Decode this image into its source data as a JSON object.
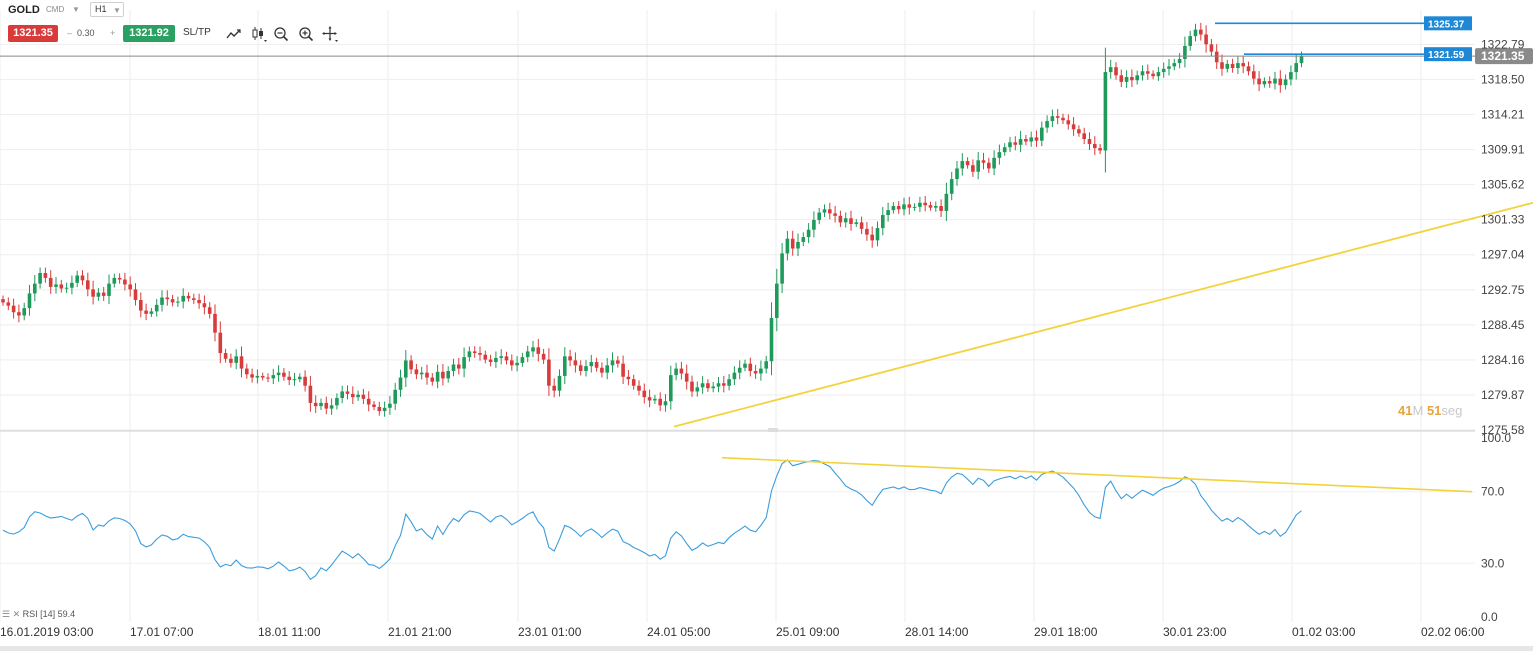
{
  "toolbar": {
    "symbol": "GOLD",
    "symbol_tag": "CMD",
    "timeframe": "H1",
    "bid": "1321.35",
    "spread": "0.30",
    "ask": "1321.92",
    "sltp_label": "SL/TP",
    "spread_minus": "–",
    "spread_plus": "+",
    "icons": [
      "line-chart-icon",
      "candlestick-icon",
      "zoom-out-icon",
      "zoom-in-icon",
      "crosshair-icon"
    ]
  },
  "countdown": {
    "minutes": "41",
    "minutes_unit": "M",
    "seconds": "51",
    "seconds_unit": "seg"
  },
  "rsi": {
    "label": "RSI [14] 59.4"
  },
  "colors": {
    "bull": "#1e9a5a",
    "bear": "#d93a3a",
    "trend": "#f2d33c",
    "level": "#1e88d6",
    "rsi": "#3b9ddd",
    "countdown": "#e8a33d"
  },
  "chart_data": [
    {
      "type": "candlestick",
      "symbol": "GOLD",
      "timeframe": "H1",
      "y_ticks": [
        1322.79,
        1318.5,
        1314.21,
        1309.91,
        1305.62,
        1301.33,
        1297.04,
        1292.75,
        1288.45,
        1284.16,
        1279.87,
        1275.58
      ],
      "ylim": [
        1275.58,
        1327.0
      ],
      "x_tick_labels": [
        "16.01.2019 03:00",
        "17.01 07:00",
        "18.01 11:00",
        "21.01 21:00",
        "23.01 01:00",
        "24.01 05:00",
        "25.01 09:00",
        "28.01 14:00",
        "29.01 18:00",
        "30.01 23:00",
        "01.02 03:00",
        "02.02 06:00"
      ],
      "current_price": {
        "value": 1321.35,
        "label": "1321.35"
      },
      "price_levels": [
        {
          "value": 1325.37,
          "label": "1325.37"
        },
        {
          "value": 1321.59,
          "label": "1321.59"
        }
      ],
      "trendline_points": [
        [
          0.0,
          1276.0
        ],
        [
          55.0,
          1322.0
        ]
      ],
      "close_series": [
        1291.2,
        1290.8,
        1290.0,
        1289.6,
        1290.5,
        1292.3,
        1293.5,
        1294.8,
        1294.2,
        1293.1,
        1293.4,
        1292.9,
        1293.0,
        1293.6,
        1294.5,
        1293.9,
        1292.8,
        1291.9,
        1292.4,
        1292.0,
        1293.5,
        1294.2,
        1294.0,
        1293.4,
        1292.8,
        1291.5,
        1290.2,
        1289.8,
        1290.1,
        1290.9,
        1291.8,
        1291.6,
        1291.2,
        1291.3,
        1292.0,
        1291.7,
        1291.5,
        1291.1,
        1290.6,
        1289.8,
        1287.5,
        1285.0,
        1284.3,
        1283.8,
        1284.6,
        1283.1,
        1282.4,
        1282.0,
        1282.2,
        1282.0,
        1281.9,
        1282.3,
        1282.6,
        1282.1,
        1281.7,
        1281.8,
        1282.1,
        1281.0,
        1278.9,
        1278.5,
        1278.9,
        1278.2,
        1278.6,
        1279.5,
        1280.3,
        1280.0,
        1279.6,
        1279.9,
        1279.4,
        1278.7,
        1278.4,
        1277.9,
        1278.3,
        1278.8,
        1280.5,
        1282.0,
        1284.1,
        1283.0,
        1282.4,
        1282.6,
        1282.0,
        1281.5,
        1282.7,
        1281.9,
        1282.8,
        1283.6,
        1283.1,
        1284.5,
        1285.2,
        1285.0,
        1284.8,
        1284.2,
        1283.9,
        1284.4,
        1284.6,
        1284.1,
        1283.5,
        1283.8,
        1284.5,
        1285.2,
        1285.7,
        1284.9,
        1284.2,
        1281.0,
        1280.4,
        1282.2,
        1284.6,
        1284.1,
        1283.5,
        1282.8,
        1283.4,
        1283.9,
        1283.2,
        1282.6,
        1283.5,
        1284.1,
        1283.7,
        1282.1,
        1281.8,
        1281.0,
        1280.4,
        1279.6,
        1279.2,
        1279.4,
        1278.6,
        1279.1,
        1282.3,
        1283.1,
        1282.5,
        1281.5,
        1280.3,
        1280.8,
        1281.3,
        1280.7,
        1280.9,
        1281.3,
        1281.0,
        1281.8,
        1282.6,
        1283.2,
        1283.7,
        1282.8,
        1282.5,
        1283.1,
        1284.0,
        1289.3,
        1293.5,
        1297.2,
        1299.0,
        1297.8,
        1298.6,
        1299.2,
        1300.1,
        1301.3,
        1302.2,
        1302.6,
        1302.1,
        1301.8,
        1301.0,
        1301.5,
        1300.8,
        1301.0,
        1300.2,
        1299.5,
        1298.8,
        1300.3,
        1301.9,
        1302.5,
        1303.0,
        1302.6,
        1303.2,
        1302.8,
        1302.9,
        1303.4,
        1303.1,
        1302.8,
        1303.0,
        1302.4,
        1304.5,
        1306.3,
        1307.6,
        1308.5,
        1308.0,
        1307.2,
        1308.6,
        1308.3,
        1307.6,
        1308.9,
        1309.6,
        1310.2,
        1310.8,
        1310.5,
        1311.2,
        1310.9,
        1311.4,
        1311.0,
        1312.6,
        1313.4,
        1314.0,
        1313.8,
        1313.5,
        1313.0,
        1312.4,
        1311.9,
        1311.2,
        1310.6,
        1310.1,
        1309.8,
        1319.4,
        1320.0,
        1319.0,
        1318.2,
        1318.8,
        1318.4,
        1319.0,
        1319.5,
        1319.2,
        1318.9,
        1319.4,
        1319.8,
        1320.1,
        1320.5,
        1321.0,
        1322.6,
        1323.8,
        1324.6,
        1324.0,
        1322.8,
        1321.9,
        1320.6,
        1319.8,
        1320.4,
        1319.9,
        1320.5,
        1320.1,
        1319.5,
        1318.6,
        1317.9,
        1318.3,
        1318.0,
        1318.6,
        1317.8,
        1318.5,
        1319.4,
        1320.5,
        1321.35
      ]
    },
    {
      "type": "line",
      "indicator": "RSI [14] 59.4",
      "y_ticks": [
        100.0,
        70.0,
        30.0,
        0.0
      ],
      "y_tick_labels": [
        "100.0",
        "70.0",
        "30.0",
        "0.0"
      ],
      "ylim": [
        0,
        100
      ],
      "trendline_points": [
        [
          0.0,
          89.0
        ],
        [
          55.0,
          70.0
        ]
      ],
      "values": [
        48.5,
        47.0,
        46.3,
        47.6,
        50.0,
        56.0,
        58.8,
        58.1,
        56.5,
        55.3,
        55.7,
        56.2,
        55.0,
        54.0,
        56.4,
        57.9,
        55.1,
        48.6,
        51.4,
        50.8,
        53.7,
        55.4,
        55.0,
        53.9,
        52.0,
        48.1,
        41.0,
        39.1,
        40.3,
        43.5,
        45.8,
        45.1,
        43.0,
        43.8,
        46.2,
        44.9,
        44.5,
        44.1,
        42.0,
        38.9,
        32.0,
        28.0,
        29.4,
        28.6,
        31.8,
        28.7,
        27.5,
        27.3,
        28.0,
        27.8,
        26.9,
        28.4,
        30.7,
        28.5,
        25.8,
        26.4,
        27.9,
        25.4,
        21.0,
        23.1,
        27.5,
        25.8,
        29.1,
        33.0,
        36.8,
        35.1,
        33.0,
        35.4,
        32.6,
        29.3,
        28.9,
        27.1,
        29.5,
        32.4,
        39.8,
        45.6,
        57.5,
        53.2,
        48.1,
        49.3,
        46.0,
        43.5,
        50.8,
        46.1,
        51.2,
        55.0,
        53.3,
        57.1,
        59.2,
        58.7,
        57.9,
        55.4,
        53.1,
        55.8,
        56.7,
        54.6,
        51.5,
        53.2,
        55.1,
        57.4,
        58.7,
        53.2,
        49.9,
        38.9,
        36.8,
        43.5,
        51.2,
        50.0,
        47.8,
        45.0,
        47.8,
        49.2,
        47.2,
        44.4,
        47.0,
        49.1,
        48.0,
        42.1,
        40.8,
        38.8,
        37.5,
        36.0,
        34.1,
        35.0,
        32.3,
        34.2,
        44.1,
        47.6,
        45.3,
        41.0,
        37.2,
        38.8,
        41.4,
        39.5,
        40.5,
        41.6,
        41.0,
        44.3,
        46.8,
        48.7,
        50.8,
        48.5,
        47.6,
        51.2,
        55.6,
        70.4,
        78.9,
        85.7,
        87.7,
        84.5,
        85.3,
        86.2,
        86.8,
        87.4,
        87.1,
        85.5,
        84.1,
        80.4,
        77.0,
        73.2,
        71.5,
        70.3,
        68.2,
        65.0,
        62.4,
        67.2,
        71.3,
        72.0,
        72.6,
        71.5,
        72.7,
        71.2,
        71.3,
        72.3,
        71.6,
        70.8,
        70.4,
        68.9,
        74.9,
        78.2,
        80.3,
        79.6,
        77.0,
        74.0,
        77.5,
        76.3,
        73.0,
        76.1,
        77.1,
        78.0,
        78.5,
        77.2,
        78.7,
        77.4,
        78.8,
        76.5,
        79.6,
        80.7,
        81.5,
        80.0,
        78.1,
        75.1,
        72.0,
        67.9,
        62.6,
        58.4,
        56.0,
        55.0,
        72.4,
        75.9,
        70.5,
        66.1,
        68.6,
        66.3,
        68.7,
        70.9,
        69.5,
        68.0,
        70.3,
        72.0,
        72.9,
        74.0,
        75.7,
        78.3,
        77.0,
        74.1,
        67.8,
        64.0,
        59.7,
        56.5,
        53.6,
        55.1,
        53.2,
        55.6,
        53.8,
        51.0,
        48.5,
        46.2,
        47.8,
        46.2,
        48.9,
        45.1,
        47.2,
        52.0,
        57.0,
        59.4
      ]
    }
  ]
}
